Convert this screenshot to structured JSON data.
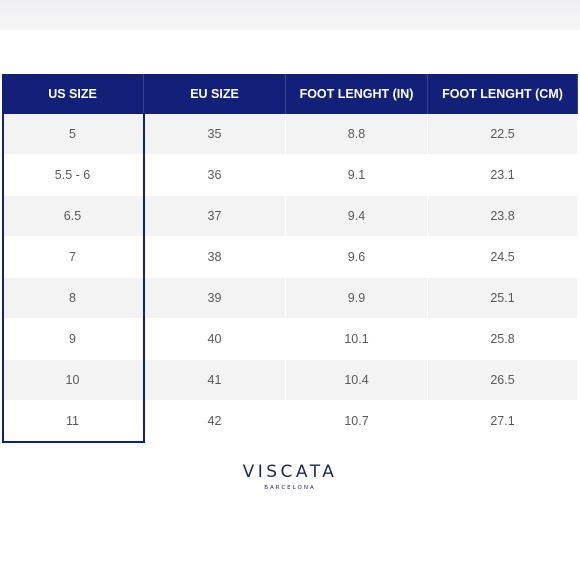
{
  "table": {
    "headers": [
      "US SIZE",
      "EU SIZE",
      "FOOT LENGHT (IN)",
      "FOOT LENGHT (CM)"
    ],
    "rows": [
      [
        "5",
        "35",
        "8.8",
        "22.5"
      ],
      [
        "5.5 - 6",
        "36",
        "9.1",
        "23.1"
      ],
      [
        "6.5",
        "37",
        "9.4",
        "23.8"
      ],
      [
        "7",
        "38",
        "9.6",
        "24.5"
      ],
      [
        "8",
        "39",
        "9.9",
        "25.1"
      ],
      [
        "9",
        "40",
        "10.1",
        "25.8"
      ],
      [
        "10",
        "41",
        "10.4",
        "26.5"
      ],
      [
        "11",
        "42",
        "10.7",
        "27.1"
      ]
    ],
    "header_color": "#12207a"
  },
  "brand": {
    "name": "VISCATA",
    "subtitle": "BARCELONA"
  }
}
